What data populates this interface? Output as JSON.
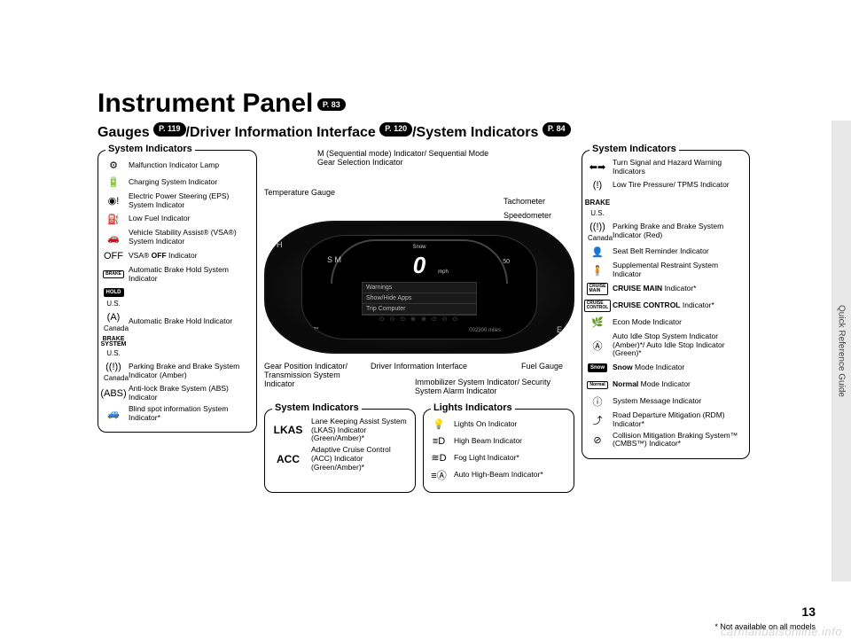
{
  "side_tab": "Quick Reference Guide",
  "title": "Instrument Panel",
  "title_pill": "P. 83",
  "subtitle_parts": {
    "a": "Gauges ",
    "pill_a": "P. 119",
    "b": "/Driver Information Interface ",
    "pill_b": "P. 120",
    "c": "/System Indicators ",
    "pill_c": "P. 84"
  },
  "left_panel": {
    "title": "System Indicators",
    "items": [
      {
        "icon": "⚙",
        "text": "Malfunction Indicator Lamp"
      },
      {
        "icon": "🔋",
        "text": "Charging System Indicator"
      },
      {
        "icon": "◉!",
        "text": "Electric Power Steering (EPS) System Indicator"
      },
      {
        "icon": "⛽",
        "text": "Low Fuel Indicator"
      },
      {
        "icon": "🚗",
        "text": "Vehicle Stability Assist® (VSA®) System Indicator"
      },
      {
        "icon": "OFF",
        "text": "VSA® OFF Indicator",
        "bold_word": "OFF"
      },
      {
        "icon": "BRAKE",
        "text": "Automatic Brake Hold System Indicator",
        "boxed": true
      },
      {
        "icon": "HOLD",
        "sub": "U.S.",
        "filled": true
      },
      {
        "icon": "(A)",
        "sub": "Canada",
        "text": "Automatic Brake Hold Indicator"
      },
      {
        "icon": "BRAKE\nSYSTEM",
        "sub": "U.S.",
        "brake": true
      },
      {
        "icon": "((!))",
        "sub": "Canada",
        "text": "Parking Brake and Brake System Indicator (Amber)"
      },
      {
        "icon": "(ABS)",
        "text": "Anti-lock Brake System (ABS) Indicator"
      },
      {
        "icon": "🚙",
        "text": "Blind spot information System Indicator*"
      }
    ]
  },
  "callouts": {
    "temp_gauge": "Temperature Gauge",
    "m_mode": "M (Sequential mode) Indicator/ Sequential Mode Gear Selection Indicator",
    "tachometer": "Tachometer",
    "speedometer": "Speedometer",
    "gear_pos": "Gear Position Indicator/ Transmission System Indicator",
    "dii": "Driver Information Interface",
    "fuel_gauge": "Fuel Gauge",
    "immobilizer": "Immobilizer System Indicator/ Security System Alarm Indicator"
  },
  "cluster": {
    "speed": "0",
    "snow": "Snow",
    "sm": "S M",
    "warnings": "Warnings",
    "show_hide": "Show/Hide Apps",
    "trip": "Trip Computer",
    "temp": "73°",
    "odo": "002300 miles",
    "mph": "mph",
    "acc_set": "50",
    "H": "H",
    "E": "E"
  },
  "mid_system": {
    "title": "System Indicators",
    "items": [
      {
        "icon": "LKAS",
        "text": "Lane Keeping Assist System (LKAS) Indicator (Green/Amber)*"
      },
      {
        "icon": "ACC",
        "text": "Adaptive Cruise Control (ACC) Indicator (Green/Amber)*"
      }
    ]
  },
  "lights_panel": {
    "title": "Lights Indicators",
    "items": [
      {
        "icon": "💡",
        "text": "Lights On Indicator"
      },
      {
        "icon": "≡D",
        "text": "High Beam Indicator"
      },
      {
        "icon": "≋D",
        "text": "Fog Light Indicator*"
      },
      {
        "icon": "≡Ⓐ",
        "text": "Auto High-Beam Indicator*"
      }
    ]
  },
  "right_panel": {
    "title": "System Indicators",
    "items": [
      {
        "icon": "⬅➡",
        "text": "Turn Signal and Hazard Warning Indicators"
      },
      {
        "icon": "(!)",
        "text": "Low Tire Pressure/ TPMS Indicator"
      },
      {
        "icon": "BRAKE",
        "sub": "U.S.",
        "brake_word": true
      },
      {
        "icon": "((!))",
        "sub": "Canada",
        "text": "Parking Brake and Brake System Indicator (Red)"
      },
      {
        "icon": "👤",
        "text": "Seat Belt Reminder Indicator"
      },
      {
        "icon": "🧍",
        "text": "Supplemental Restraint System Indicator"
      },
      {
        "icon": "CRUISE\nMAIN",
        "boxed": true,
        "text": "CRUISE MAIN Indicator*",
        "bold_prefix": "CRUISE MAIN"
      },
      {
        "icon": "CRUISE\nCONTROL",
        "boxed": true,
        "text": "CRUISE CONTROL Indicator*",
        "bold_prefix": "CRUISE CONTROL"
      },
      {
        "icon": "🌿",
        "text": "Econ Mode Indicator"
      },
      {
        "icon": "Ⓐ",
        "text": "Auto Idle Stop System Indicator (Amber)*/ Auto Idle Stop Indicator (Green)*"
      },
      {
        "icon": "Snow",
        "filled": true,
        "text": "Snow Mode Indicator",
        "bold_prefix": "Snow"
      },
      {
        "icon": "Normal",
        "boxed": true,
        "text": "Normal Mode Indicator",
        "bold_prefix": "Normal"
      },
      {
        "icon": "ⓘ",
        "text": "System Message Indicator"
      },
      {
        "icon": "⤴",
        "text": "Road Departure Mitigation (RDM) Indicator*"
      },
      {
        "icon": "⊘",
        "text": "Collision Mitigation Braking System™ (CMBS™) Indicator*"
      }
    ]
  },
  "footnote": "* Not available on all models",
  "page_num": "13",
  "watermark": "carmanualsonline.info"
}
